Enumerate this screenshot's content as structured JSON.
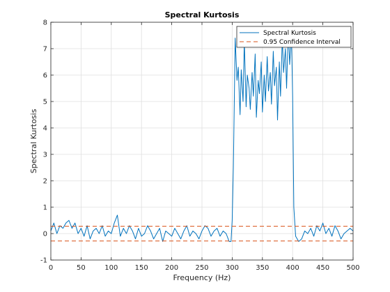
{
  "chart_data": {
    "type": "line",
    "title": "Spectral Kurtosis",
    "xlabel": "Frequency (Hz)",
    "ylabel": "Spectral Kurtosis",
    "xlim": [
      0,
      500
    ],
    "ylim": [
      -1,
      8
    ],
    "xticks": [
      0,
      50,
      100,
      150,
      200,
      250,
      300,
      350,
      400,
      450,
      500
    ],
    "yticks": [
      -1,
      0,
      1,
      2,
      3,
      4,
      5,
      6,
      7,
      8
    ],
    "grid": true,
    "legend_position": "top-right",
    "series": [
      {
        "name": "Spectral Kurtosis",
        "style": "solid",
        "color": "#0072BD",
        "x": [
          0,
          5,
          10,
          15,
          20,
          25,
          30,
          35,
          40,
          45,
          50,
          55,
          60,
          65,
          70,
          75,
          80,
          85,
          90,
          95,
          100,
          105,
          110,
          115,
          120,
          125,
          130,
          135,
          140,
          145,
          150,
          155,
          160,
          165,
          170,
          175,
          180,
          185,
          190,
          195,
          200,
          205,
          210,
          215,
          220,
          225,
          230,
          235,
          240,
          245,
          250,
          255,
          260,
          265,
          270,
          275,
          280,
          285,
          290,
          295,
          298,
          300,
          302,
          305,
          308,
          310,
          313,
          315,
          318,
          320,
          323,
          325,
          328,
          330,
          333,
          335,
          338,
          340,
          343,
          345,
          348,
          350,
          353,
          355,
          358,
          360,
          363,
          365,
          368,
          370,
          373,
          375,
          378,
          380,
          383,
          385,
          388,
          390,
          393,
          395,
          398,
          400,
          402,
          405,
          410,
          415,
          420,
          425,
          430,
          435,
          440,
          445,
          450,
          455,
          460,
          465,
          470,
          475,
          480,
          485,
          490,
          495,
          500
        ],
        "values": [
          0.1,
          0.4,
          0.0,
          0.3,
          0.2,
          0.4,
          0.5,
          0.2,
          0.4,
          0.0,
          0.2,
          -0.1,
          0.3,
          -0.2,
          0.1,
          0.2,
          0.0,
          0.3,
          -0.1,
          0.1,
          0.0,
          0.4,
          0.7,
          -0.1,
          0.2,
          0.0,
          0.3,
          0.1,
          -0.2,
          0.2,
          -0.1,
          0.0,
          0.3,
          0.1,
          -0.2,
          0.0,
          0.2,
          -0.3,
          0.1,
          0.0,
          -0.1,
          0.2,
          0.0,
          -0.2,
          0.1,
          0.3,
          -0.1,
          0.1,
          0.0,
          -0.2,
          0.1,
          0.3,
          0.2,
          -0.1,
          0.1,
          0.2,
          -0.1,
          0.1,
          0.0,
          -0.3,
          -0.3,
          0.5,
          2.5,
          7.4,
          5.8,
          6.3,
          4.5,
          6.2,
          5.0,
          7.3,
          4.8,
          6.0,
          5.5,
          4.7,
          6.1,
          5.2,
          6.8,
          4.4,
          5.8,
          5.3,
          6.5,
          4.6,
          6.0,
          5.0,
          6.7,
          5.4,
          6.1,
          4.9,
          6.9,
          5.6,
          6.3,
          4.3,
          6.5,
          5.2,
          7.4,
          6.1,
          7.0,
          5.5,
          7.8,
          6.4,
          7.5,
          5.2,
          1.0,
          -0.1,
          -0.3,
          -0.2,
          0.1,
          0.0,
          0.2,
          -0.1,
          0.3,
          0.1,
          0.4,
          0.0,
          0.2,
          -0.1,
          0.3,
          0.1,
          -0.2,
          0.0,
          0.1,
          0.2,
          0.1
        ]
      },
      {
        "name": "0.95 Confidence Interval",
        "style": "dashed",
        "color": "#D95319",
        "x": [
          0,
          500
        ],
        "values": [
          0.28,
          0.28
        ]
      },
      {
        "name": "",
        "style": "dashed",
        "color": "#D95319",
        "x": [
          0,
          500
        ],
        "values": [
          -0.28,
          -0.28
        ]
      }
    ]
  }
}
